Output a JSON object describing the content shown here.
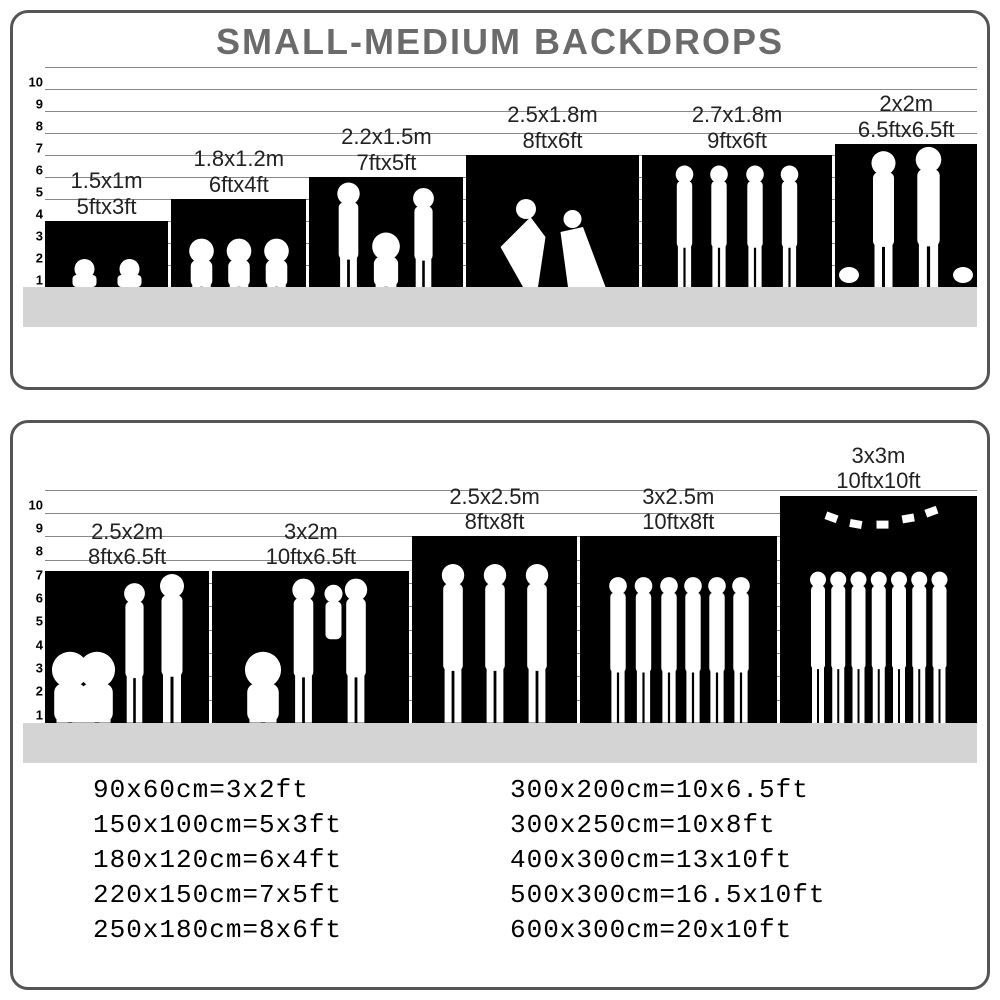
{
  "title": "SMALL-MEDIUM BACKDROPS",
  "colors": {
    "border": "#555555",
    "title_text": "#6b6b6b",
    "bar_fill": "#000000",
    "silhouette": "#ffffff",
    "gridline": "#888888",
    "floor": "#d4d4d4",
    "background": "#ffffff",
    "label_text": "#222222"
  },
  "typography": {
    "title_fontsize": 36,
    "title_weight": 900,
    "label_fontsize": 22,
    "ytick_fontsize": 13,
    "conversion_fontsize": 26,
    "conversion_family": "monospace"
  },
  "top_chart": {
    "type": "bar",
    "ymax_ft": 10,
    "yticks": [
      1,
      2,
      3,
      4,
      5,
      6,
      7,
      8,
      9,
      10
    ],
    "floor_height": 40,
    "backdrops": [
      {
        "m": "1.5x1m",
        "ft": "5ftx3ft",
        "height_ft": 3.0,
        "width_flex": 1.0,
        "silhouette_type": "children-sitting"
      },
      {
        "m": "1.8x1.2m",
        "ft": "6ftx4ft",
        "height_ft": 4.0,
        "width_flex": 1.1,
        "silhouette_type": "children-running"
      },
      {
        "m": "2.2x1.5m",
        "ft": "7ftx5ft",
        "height_ft": 5.0,
        "width_flex": 1.25,
        "silhouette_type": "family-3"
      },
      {
        "m": "2.5x1.8m",
        "ft": "8ftx6ft",
        "height_ft": 6.0,
        "width_flex": 1.4,
        "silhouette_type": "couple-dance"
      },
      {
        "m": "2.7x1.8m",
        "ft": "9ftx6ft",
        "height_ft": 6.0,
        "width_flex": 1.55,
        "silhouette_type": "four-women"
      },
      {
        "m": "2x2m",
        "ft": "6.5ftx6.5ft",
        "height_ft": 6.5,
        "width_flex": 1.15,
        "silhouette_type": "couple-dogs"
      }
    ]
  },
  "bottom_chart": {
    "type": "bar",
    "ymax_ft": 12,
    "yticks": [
      1,
      2,
      3,
      4,
      5,
      6,
      7,
      8,
      9,
      10
    ],
    "floor_height": 40,
    "backdrops": [
      {
        "m": "2.5x2m",
        "ft": "8ftx6.5ft",
        "height_ft": 6.5,
        "width_flex": 1.0,
        "silhouette_type": "family-4"
      },
      {
        "m": "3x2m",
        "ft": "10ftx6.5ft",
        "height_ft": 6.5,
        "width_flex": 1.2,
        "silhouette_type": "family-lift"
      },
      {
        "m": "2.5x2.5m",
        "ft": "8ftx8ft",
        "height_ft": 8.0,
        "width_flex": 1.0,
        "silhouette_type": "three-men"
      },
      {
        "m": "3x2.5m",
        "ft": "10ftx8ft",
        "height_ft": 8.0,
        "width_flex": 1.2,
        "silhouette_type": "group-6"
      },
      {
        "m": "3x3m",
        "ft": "10ftx10ft",
        "height_ft": 10.0,
        "width_flex": 1.2,
        "silhouette_type": "graduation"
      }
    ]
  },
  "conversion_table": {
    "left": [
      "90x60cm=3x2ft",
      "150x100cm=5x3ft",
      "180x120cm=6x4ft",
      "220x150cm=7x5ft",
      "250x180cm=8x6ft"
    ],
    "right": [
      "300x200cm=10x6.5ft",
      "300x250cm=10x8ft",
      "400x300cm=13x10ft",
      "500x300cm=16.5x10ft",
      "600x300cm=20x10ft"
    ]
  }
}
